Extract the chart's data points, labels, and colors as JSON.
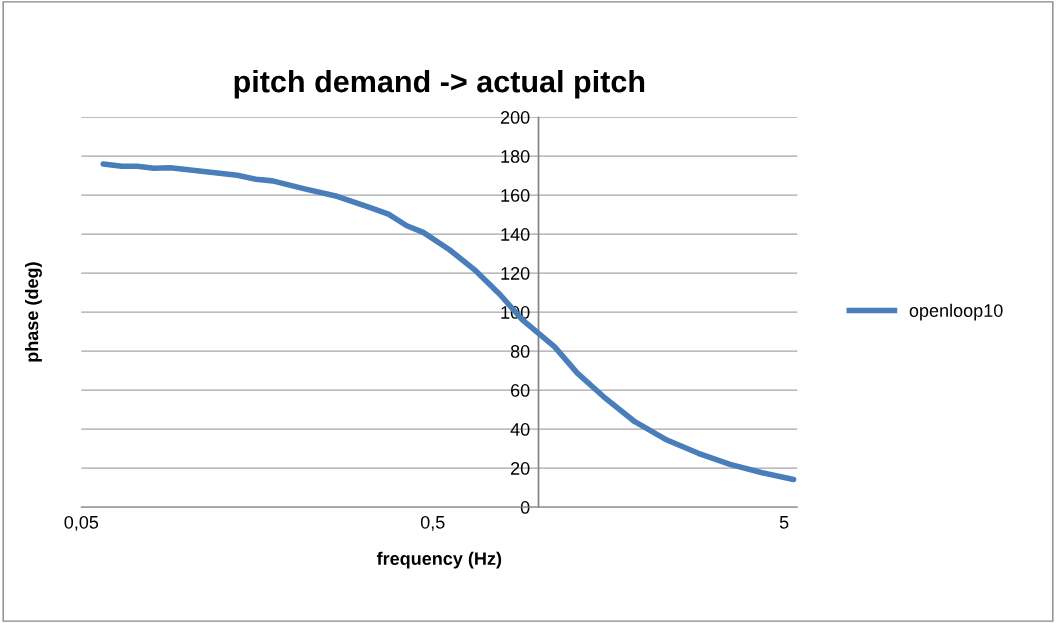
{
  "chart_data": {
    "type": "line",
    "title": "pitch demand -> actual pitch",
    "xlabel": "frequency (Hz)",
    "ylabel": "phase (deg)",
    "log": "x",
    "xlim": [
      0.05,
      5.45
    ],
    "xticks": [
      {
        "value": 0.05,
        "label": "0,05"
      },
      {
        "value": 0.5,
        "label": "0,5"
      },
      {
        "value": 5,
        "label": "5"
      }
    ],
    "ylim": [
      0,
      200
    ],
    "yticks": [
      0,
      20,
      40,
      60,
      80,
      100,
      120,
      140,
      160,
      180,
      200
    ],
    "grid": "y",
    "legend": "right",
    "marker": "none",
    "line_style": "solid",
    "ref_lines": [
      {
        "axis": "x",
        "value": 1,
        "label": null,
        "color": "#868686"
      }
    ],
    "series": [
      {
        "name": "openloop10",
        "color": "#4a7ebb",
        "x": [
          0.0577,
          0.0652,
          0.0722,
          0.0804,
          0.0895,
          0.11,
          0.139,
          0.157,
          0.175,
          0.216,
          0.267,
          0.329,
          0.374,
          0.422,
          0.47,
          0.558,
          0.658,
          0.778,
          0.9,
          1.11,
          1.29,
          1.53,
          1.88,
          2.32,
          2.85,
          3.51,
          4.33,
          5.32
        ],
        "values": [
          176,
          174.8,
          174.8,
          173.8,
          174,
          172.2,
          170.2,
          168.1,
          167.3,
          163.2,
          159.4,
          153.9,
          150.3,
          144.3,
          140.9,
          132,
          121.7,
          108.9,
          96,
          82.3,
          68.7,
          56.7,
          43.8,
          34.4,
          27.6,
          21.9,
          17.6,
          14.2
        ]
      }
    ]
  }
}
